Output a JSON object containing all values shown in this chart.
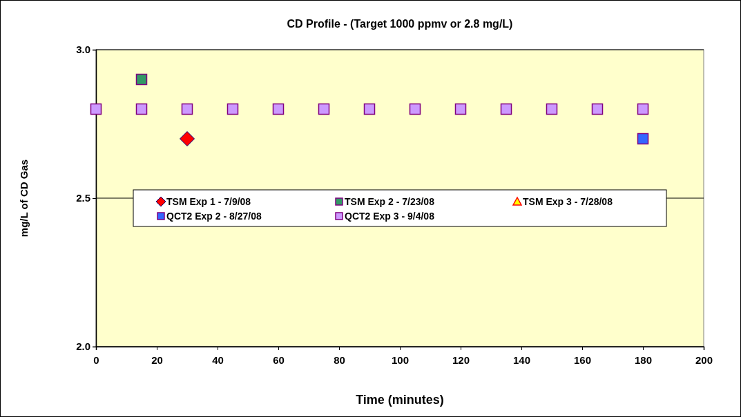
{
  "chart_data": {
    "type": "scatter",
    "title": "CD Profile - (Target 1000 ppmv or 2.8 mg/L)",
    "xlabel": "Time (minutes)",
    "ylabel": "mg/L of CD Gas",
    "xlim": [
      0,
      200
    ],
    "xticks": [
      0,
      20,
      40,
      60,
      80,
      100,
      120,
      140,
      160,
      180,
      200
    ],
    "ylim": [
      2,
      3
    ],
    "yticks": [
      {
        "value": 2,
        "label": "2.0"
      },
      {
        "value": 2.5,
        "label": "2.5"
      },
      {
        "value": 3,
        "label": "3.0"
      }
    ],
    "grid": "y",
    "legend": "left",
    "series": [
      {
        "name": "TSM Exp 1 - 7/9/08",
        "color": "#ff0000",
        "marker": "diamond",
        "x": [
          30
        ],
        "values": [
          2.7
        ]
      },
      {
        "name": "TSM Exp 2 - 7/23/08",
        "color": "#339966",
        "marker": "square",
        "x": [
          15
        ],
        "values": [
          2.9
        ]
      },
      {
        "name": "TSM Exp 3 - 7/28/08",
        "color": "#ffff00",
        "marker": "triangle"
      },
      {
        "name": "QCT2 Exp 2 - 8/27/08",
        "color": "#3366ff",
        "marker": "square",
        "x": [
          180
        ],
        "values": [
          2.7
        ]
      },
      {
        "name": "QCT2 Exp 3 - 9/4/08",
        "color": "#cc99ff",
        "marker": "square",
        "x": [
          0,
          15,
          30,
          45,
          60,
          75,
          90,
          105,
          120,
          135,
          150,
          165,
          180
        ],
        "values": [
          2.8,
          2.8,
          2.8,
          2.8,
          2.8,
          2.8,
          2.8,
          2.8,
          2.8,
          2.8,
          2.8,
          2.8,
          2.8
        ]
      }
    ]
  }
}
